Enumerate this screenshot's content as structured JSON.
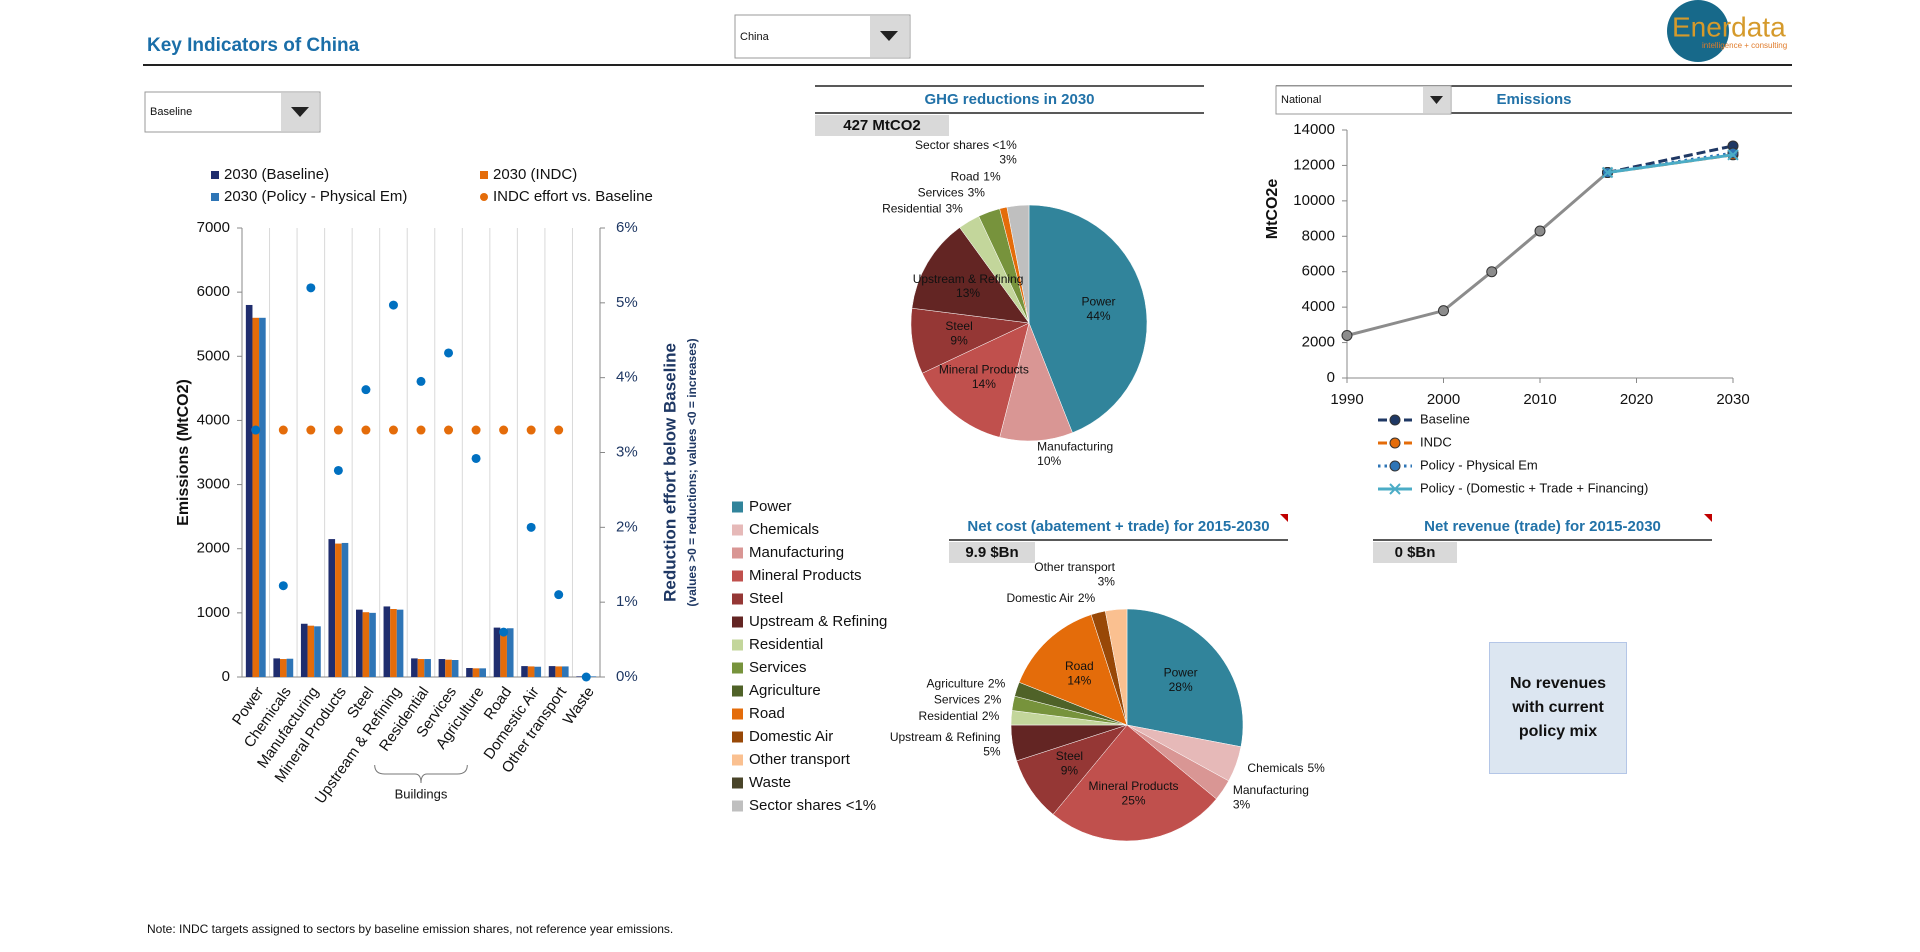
{
  "header": {
    "title": "Key Indicators of  China",
    "country_select": "China",
    "logo": "Enerdata",
    "logo_tagline": "intelligence + consulting"
  },
  "scenario_select": "Baseline",
  "chart_data": [
    {
      "type": "bar",
      "categories": [
        "Power",
        "Chemicals",
        "Manufacturing",
        "Mineral Products",
        "Steel",
        "Upstream & Refining",
        "Residential",
        "Services",
        "Agriculture",
        "Road",
        "Domestic Air",
        "Other transport",
        "Waste"
      ],
      "series": [
        {
          "name": "2030 (Baseline)",
          "color": "#1f2d6e",
          "values": [
            5800,
            290,
            830,
            2150,
            1050,
            1100,
            290,
            280,
            140,
            770,
            170,
            170,
            10
          ]
        },
        {
          "name": "2030 (INDC)",
          "color": "#e46c0a",
          "values": [
            5600,
            280,
            800,
            2080,
            1010,
            1060,
            280,
            270,
            135,
            745,
            165,
            165,
            10
          ]
        },
        {
          "name": "2030 (Policy - Physical Em)",
          "color": "#2e75b6",
          "values": [
            5600,
            285,
            790,
            2090,
            1000,
            1050,
            280,
            265,
            135,
            760,
            160,
            165,
            10
          ]
        },
        {
          "name": "INDC effort vs. Baseline",
          "color": "#e46c0a",
          "axis": "y2",
          "values": [
            3.3,
            3.3,
            3.3,
            3.3,
            3.3,
            3.3,
            3.3,
            3.3,
            3.3,
            3.3,
            3.3,
            3.3,
            null
          ]
        },
        {
          "color": "#0070c0",
          "axis": "y2",
          "values": [
            3.3,
            1.22,
            5.2,
            2.76,
            3.84,
            4.97,
            3.95,
            4.33,
            2.92,
            0.6,
            2.0,
            1.1,
            0
          ]
        }
      ],
      "ylabel": "Emissions (MtCO2)",
      "y2label": "Reduction effort below Baseline",
      "y2sublabel": "(values >0 = reductions; values <0 = increases)",
      "bracket_label": "Buildings",
      "ylim": [
        0,
        7000
      ],
      "yticks": [
        0,
        1000,
        2000,
        3000,
        4000,
        5000,
        6000,
        7000
      ],
      "y2lim": [
        0,
        6
      ],
      "y2ticks": [
        {
          "value": 0,
          "label": "0%"
        },
        {
          "value": 1,
          "label": "1%"
        },
        {
          "value": 2,
          "label": "2%"
        },
        {
          "value": 3,
          "label": "3%"
        },
        {
          "value": 4,
          "label": "4%"
        },
        {
          "value": 5,
          "label": "5%"
        },
        {
          "value": 6,
          "label": "6%"
        }
      ]
    },
    {
      "type": "pie",
      "title": "GHG reductions in 2030",
      "total": "427 MtCO2",
      "categories": [
        "Power",
        "Manufacturing",
        "Mineral Products",
        "Steel",
        "Upstream & Refining",
        "Residential",
        "Services",
        "Road",
        "Sector shares <1%"
      ],
      "colors": [
        "#31849b",
        "#d99694",
        "#c0504d",
        "#953735",
        "#632523",
        "#c3d69b",
        "#77933c",
        "#e46c0a",
        "#bfbfbf"
      ],
      "values": [
        44,
        10,
        14,
        9,
        13,
        3,
        3,
        1,
        3
      ],
      "value_labels": [
        "44%",
        "10%",
        "14%",
        "9%",
        "13%",
        "3%",
        "3%",
        "1%",
        "3%"
      ]
    },
    {
      "type": "pie",
      "title": "Net cost (abatement + trade) for 2015-2030",
      "total": "9.9 $Bn",
      "categories": [
        "Power",
        "Chemicals",
        "Manufacturing",
        "Mineral Products",
        "Steel",
        "Upstream & Refining",
        "Residential",
        "Services",
        "Agriculture",
        "Road",
        "Domestic Air",
        "Other transport"
      ],
      "colors": [
        "#31849b",
        "#e6b9b8",
        "#d99694",
        "#c0504d",
        "#953735",
        "#632523",
        "#c3d69b",
        "#77933c",
        "#4f6228",
        "#e46c0a",
        "#984807",
        "#fac090"
      ],
      "values": [
        28,
        5,
        3,
        25,
        9,
        5,
        2,
        2,
        2,
        14,
        2,
        3
      ],
      "value_labels": [
        "28%",
        "5%",
        "3%",
        "25%",
        "9%",
        "5%",
        "2%",
        "2%",
        "2%",
        "14%",
        "2%",
        "3%"
      ]
    },
    {
      "type": "line",
      "title": "Emissions",
      "region_select": "National",
      "ylabel": "MtCO2e",
      "x": [
        1990,
        2000,
        2005,
        2010,
        2017,
        2030
      ],
      "xlim": [
        1990,
        2030
      ],
      "xticks": [
        1990,
        2000,
        2010,
        2020,
        2030
      ],
      "ylim": [
        0,
        14000
      ],
      "yticks": [
        0,
        2000,
        4000,
        6000,
        8000,
        10000,
        12000,
        14000
      ],
      "series": [
        {
          "color": "#8c8c8c",
          "dash": "solid",
          "marker": "circle",
          "values": [
            2400,
            3800,
            6000,
            8300,
            11600,
            null
          ]
        },
        {
          "name": "Baseline",
          "color": "#1f3864",
          "dash": "dash",
          "marker": "circle",
          "values": [
            null,
            null,
            null,
            null,
            11600,
            13100
          ]
        },
        {
          "name": "INDC",
          "color": "#e46c0a",
          "dash": "dash",
          "marker": "circle",
          "values": [
            null,
            null,
            null,
            null,
            11600,
            12600
          ]
        },
        {
          "name": "Policy - Physical Em",
          "color": "#2e75b6",
          "dash": "dot",
          "marker": "circle",
          "values": [
            null,
            null,
            null,
            null,
            11600,
            12700
          ]
        },
        {
          "name": "Policy - (Domestic + Trade + Financing)",
          "color": "#4bacc6",
          "dash": "solid",
          "marker": "x",
          "values": [
            null,
            null,
            null,
            null,
            11600,
            12600
          ]
        }
      ]
    }
  ],
  "sector_legend": [
    {
      "name": "Power",
      "color": "#31849b"
    },
    {
      "name": "Chemicals",
      "color": "#e6b9b8"
    },
    {
      "name": "Manufacturing",
      "color": "#d99694"
    },
    {
      "name": "Mineral Products",
      "color": "#c0504d"
    },
    {
      "name": "Steel",
      "color": "#953735"
    },
    {
      "name": "Upstream & Refining",
      "color": "#632523"
    },
    {
      "name": "Residential",
      "color": "#c3d69b"
    },
    {
      "name": "Services",
      "color": "#77933c"
    },
    {
      "name": "Agriculture",
      "color": "#4f6228"
    },
    {
      "name": "Road",
      "color": "#e46c0a"
    },
    {
      "name": "Domestic Air",
      "color": "#984807"
    },
    {
      "name": "Other transport",
      "color": "#fac090"
    },
    {
      "name": "Waste",
      "color": "#494429"
    },
    {
      "name": "Sector shares <1%",
      "color": "#bfbfbf"
    }
  ],
  "revenue_panel": {
    "title": "Net revenue (trade) for 2015-2030",
    "total": "0 $Bn",
    "message": "No revenues with current policy mix"
  },
  "note": "Note: INDC targets assigned to sectors by baseline emission shares, not reference year emissions."
}
